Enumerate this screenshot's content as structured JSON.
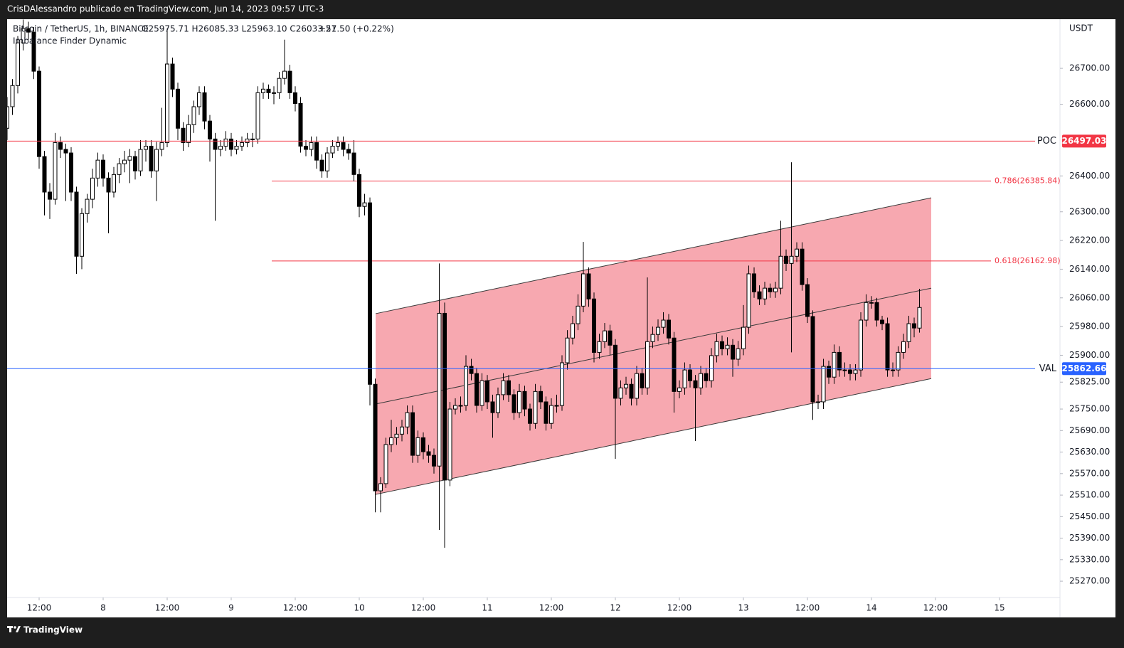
{
  "header": {
    "publisher": "CrisDAlessandro publicado en TradingView.com, Jun 14, 2023 09:57 UTC-3",
    "brand": "TradingView"
  },
  "chart_data": {
    "type": "candlestick",
    "title": "Bitcoin / TetherUS, 1h, BINANCE",
    "ohlc_text": "O25975.71 H26085.33 L25963.10 C26033.21",
    "change": "+57.50 (+0.22%)",
    "indicator": "Imbalance Finder Dynamic",
    "currency": "USDT",
    "up_color": "#ffffff",
    "down_color": "#000000",
    "wick_color": "#000000",
    "xlim": [
      -18,
      179.33
    ],
    "ylim": [
      25169,
      26837
    ],
    "xticks": [
      {
        "value": -12,
        "label": "12:00"
      },
      {
        "value": 0,
        "label": "8"
      },
      {
        "value": 12,
        "label": "12:00"
      },
      {
        "value": 24,
        "label": "9"
      },
      {
        "value": 36,
        "label": "12:00"
      },
      {
        "value": 48,
        "label": "10"
      },
      {
        "value": 60,
        "label": "12:00"
      },
      {
        "value": 72,
        "label": "11"
      },
      {
        "value": 84,
        "label": "12:00"
      },
      {
        "value": 96,
        "label": "12"
      },
      {
        "value": 108,
        "label": "12:00"
      },
      {
        "value": 120,
        "label": "13"
      },
      {
        "value": 132,
        "label": "12:00"
      },
      {
        "value": 144,
        "label": "14"
      },
      {
        "value": 156,
        "label": "12:00"
      },
      {
        "value": 168,
        "label": "15"
      }
    ],
    "yticks": [
      {
        "value": 26700,
        "label": "26700.00"
      },
      {
        "value": 26600,
        "label": "26600.00"
      },
      {
        "value": 26400,
        "label": "26400.00"
      },
      {
        "value": 26300,
        "label": "26300.00"
      },
      {
        "value": 26220,
        "label": "26220.00"
      },
      {
        "value": 26140,
        "label": "26140.00"
      },
      {
        "value": 26060,
        "label": "26060.00"
      },
      {
        "value": 25980,
        "label": "25980.00"
      },
      {
        "value": 25900,
        "label": "25900.00"
      },
      {
        "value": 25825,
        "label": "25825.00"
      },
      {
        "value": 25750,
        "label": "25750.00"
      },
      {
        "value": 25690,
        "label": "25690.00"
      },
      {
        "value": 25630,
        "label": "25630.00"
      },
      {
        "value": 25570,
        "label": "25570.00"
      },
      {
        "value": 25510,
        "label": "25510.00"
      },
      {
        "value": 25450,
        "label": "25450.00"
      },
      {
        "value": 25390,
        "label": "25390.00"
      },
      {
        "value": 25330,
        "label": "25330.00"
      },
      {
        "value": 25270,
        "label": "25270.00"
      }
    ],
    "levels": [
      {
        "name": "POC",
        "value": 26497.03,
        "color": "#f23645"
      },
      {
        "name": "VAL",
        "value": 25862.66,
        "color": "#2962ff"
      }
    ],
    "fib": [
      {
        "label": "0.786(26385.84)",
        "value": 26385.84,
        "start": 31.6,
        "color": "#f23645"
      },
      {
        "label": "0.618(26162.98)",
        "value": 26162.98,
        "start": 31.6,
        "color": "#f23645"
      }
    ],
    "channel": {
      "x": [
        51.07,
        155.2
      ],
      "upper": [
        26016,
        26339
      ],
      "middle": [
        25764,
        26087
      ],
      "lower": [
        25512,
        25835
      ],
      "color": "#f7a8b0"
    },
    "x": [
      -18,
      -17,
      -16,
      -15,
      -14,
      -13,
      -12,
      -11,
      -10,
      -9,
      -8,
      -7,
      -6,
      -5,
      -4,
      -3,
      -2,
      -1,
      0,
      1,
      2,
      3,
      4,
      5,
      6,
      7,
      8,
      9,
      10,
      11,
      12,
      13,
      14,
      15,
      16,
      17,
      18,
      19,
      20,
      21,
      22,
      23,
      24,
      25,
      26,
      27,
      28,
      29,
      30,
      31,
      32,
      33,
      34,
      35,
      36,
      37,
      38,
      39,
      40,
      41,
      42,
      43,
      44,
      45,
      46,
      47,
      48,
      49,
      50,
      51,
      52,
      53,
      54,
      55,
      56,
      57,
      58,
      59,
      60,
      61,
      62,
      63,
      64,
      65,
      66,
      67,
      68,
      69,
      70,
      71,
      72,
      73,
      74,
      75,
      76,
      77,
      78,
      79,
      80,
      81,
      82,
      83,
      84,
      85,
      86,
      87,
      88,
      89,
      90,
      91,
      92,
      93,
      94,
      95,
      96,
      97,
      98,
      99,
      100,
      101,
      102,
      103,
      104,
      105,
      106,
      107,
      108,
      109,
      110,
      111,
      112,
      113,
      114,
      115,
      116,
      117,
      118,
      119,
      120,
      121,
      122,
      123,
      124,
      125,
      126,
      127,
      128,
      129,
      130,
      131,
      132,
      133,
      134,
      135,
      136,
      137,
      138,
      139,
      140,
      141,
      142,
      143,
      144,
      145,
      146,
      147,
      148,
      149,
      150,
      151,
      152,
      153
    ],
    "candles": [
      [
        26533,
        26620,
        26500,
        26593
      ],
      [
        26593,
        26670,
        26570,
        26652
      ],
      [
        26652,
        26790,
        26630,
        26771
      ],
      [
        26771,
        26836,
        26750,
        26811
      ],
      [
        26811,
        26830,
        26780,
        26801
      ],
      [
        26801,
        26815,
        26670,
        26692
      ],
      [
        26692,
        26705,
        26420,
        26454
      ],
      [
        26454,
        26470,
        26290,
        26355
      ],
      [
        26355,
        26380,
        26280,
        26335
      ],
      [
        26335,
        26520,
        26320,
        26493
      ],
      [
        26493,
        26510,
        26450,
        26474
      ],
      [
        26474,
        26490,
        26330,
        26464
      ],
      [
        26464,
        26480,
        26330,
        26355
      ],
      [
        26355,
        26370,
        26127,
        26176
      ],
      [
        26176,
        26310,
        26140,
        26295
      ],
      [
        26295,
        26350,
        26270,
        26335
      ],
      [
        26335,
        26420,
        26310,
        26394
      ],
      [
        26394,
        26465,
        26370,
        26444
      ],
      [
        26444,
        26460,
        26370,
        26394
      ],
      [
        26394,
        26410,
        26240,
        26355
      ],
      [
        26355,
        26425,
        26340,
        26404
      ],
      [
        26404,
        26450,
        26380,
        26434
      ],
      [
        26434,
        26470,
        26410,
        26444
      ],
      [
        26444,
        26475,
        26380,
        26454
      ],
      [
        26454,
        26470,
        26390,
        26414
      ],
      [
        26414,
        26500,
        26400,
        26474
      ],
      [
        26474,
        26500,
        26440,
        26483
      ],
      [
        26483,
        26500,
        26395,
        26414
      ],
      [
        26414,
        26495,
        26330,
        26474
      ],
      [
        26474,
        26590,
        26455,
        26493
      ],
      [
        26493,
        26811,
        26480,
        26712
      ],
      [
        26712,
        26730,
        26620,
        26642
      ],
      [
        26642,
        26660,
        26500,
        26533
      ],
      [
        26533,
        26550,
        26470,
        26493
      ],
      [
        26493,
        26570,
        26480,
        26543
      ],
      [
        26543,
        26610,
        26520,
        26593
      ],
      [
        26593,
        26650,
        26570,
        26632
      ],
      [
        26632,
        26650,
        26530,
        26553
      ],
      [
        26553,
        26570,
        26440,
        26503
      ],
      [
        26503,
        26520,
        26275,
        26474
      ],
      [
        26474,
        26500,
        26455,
        26483
      ],
      [
        26483,
        26525,
        26470,
        26503
      ],
      [
        26503,
        26520,
        26455,
        26474
      ],
      [
        26474,
        26500,
        26460,
        26483
      ],
      [
        26483,
        26510,
        26470,
        26493
      ],
      [
        26493,
        26520,
        26480,
        26503
      ],
      [
        26503,
        26520,
        26480,
        26503
      ],
      [
        26503,
        26650,
        26490,
        26632
      ],
      [
        26632,
        26660,
        26615,
        26642
      ],
      [
        26642,
        26655,
        26615,
        26632
      ],
      [
        26632,
        26650,
        26600,
        26632
      ],
      [
        26632,
        26690,
        26615,
        26672
      ],
      [
        26672,
        26780,
        26655,
        26692
      ],
      [
        26692,
        26710,
        26615,
        26632
      ],
      [
        26632,
        26650,
        26580,
        26602
      ],
      [
        26602,
        26620,
        26465,
        26483
      ],
      [
        26483,
        26500,
        26455,
        26474
      ],
      [
        26474,
        26510,
        26455,
        26493
      ],
      [
        26493,
        26510,
        26420,
        26444
      ],
      [
        26444,
        26460,
        26395,
        26414
      ],
      [
        26414,
        26480,
        26395,
        26464
      ],
      [
        26464,
        26500,
        26450,
        26483
      ],
      [
        26483,
        26510,
        26470,
        26493
      ],
      [
        26493,
        26510,
        26455,
        26474
      ],
      [
        26474,
        26490,
        26445,
        26464
      ],
      [
        26464,
        26500,
        26385,
        26404
      ],
      [
        26404,
        26420,
        26285,
        26315
      ],
      [
        26315,
        26350,
        26290,
        26325
      ],
      [
        26325,
        26340,
        25760,
        25819
      ],
      [
        25819,
        25835,
        25462,
        25522
      ],
      [
        25522,
        25560,
        25462,
        25542
      ],
      [
        25542,
        25670,
        25530,
        25651
      ],
      [
        25651,
        25720,
        25630,
        25670
      ],
      [
        25670,
        25700,
        25650,
        25680
      ],
      [
        25680,
        25720,
        25660,
        25700
      ],
      [
        25700,
        25760,
        25680,
        25740
      ],
      [
        25740,
        25760,
        25600,
        25621
      ],
      [
        25621,
        25690,
        25600,
        25670
      ],
      [
        25670,
        25685,
        25610,
        25631
      ],
      [
        25631,
        25650,
        25600,
        25621
      ],
      [
        25621,
        25640,
        25570,
        25591
      ],
      [
        25591,
        26156,
        25413,
        26017
      ],
      [
        26017,
        26047,
        25363,
        25552
      ],
      [
        25552,
        25770,
        25535,
        25750
      ],
      [
        25750,
        25780,
        25735,
        25760
      ],
      [
        25760,
        25785,
        25740,
        25760
      ],
      [
        25760,
        25900,
        25745,
        25869
      ],
      [
        25869,
        25890,
        25830,
        25849
      ],
      [
        25849,
        25865,
        25740,
        25760
      ],
      [
        25760,
        25850,
        25745,
        25829
      ],
      [
        25829,
        25845,
        25750,
        25770
      ],
      [
        25770,
        25790,
        25670,
        25740
      ],
      [
        25740,
        25810,
        25725,
        25790
      ],
      [
        25790,
        25850,
        25775,
        25829
      ],
      [
        25829,
        25845,
        25770,
        25790
      ],
      [
        25790,
        25805,
        25720,
        25740
      ],
      [
        25740,
        25820,
        25725,
        25799
      ],
      [
        25799,
        25815,
        25730,
        25750
      ],
      [
        25750,
        25765,
        25690,
        25710
      ],
      [
        25710,
        25820,
        25695,
        25799
      ],
      [
        25799,
        25815,
        25750,
        25770
      ],
      [
        25770,
        25785,
        25690,
        25710
      ],
      [
        25710,
        25780,
        25695,
        25760
      ],
      [
        25760,
        25790,
        25740,
        25760
      ],
      [
        25760,
        25900,
        25745,
        25879
      ],
      [
        25879,
        25970,
        25860,
        25948
      ],
      [
        25948,
        26010,
        25930,
        25988
      ],
      [
        25988,
        26070,
        25970,
        26037
      ],
      [
        26037,
        26216,
        26020,
        26127
      ],
      [
        26127,
        26145,
        26035,
        26057
      ],
      [
        26057,
        26075,
        25880,
        25908
      ],
      [
        25908,
        25960,
        25890,
        25938
      ],
      [
        25938,
        25990,
        25920,
        25968
      ],
      [
        25968,
        25985,
        25900,
        25928
      ],
      [
        25928,
        25945,
        25611,
        25780
      ],
      [
        25780,
        25830,
        25760,
        25809
      ],
      [
        25809,
        25840,
        25790,
        25819
      ],
      [
        25819,
        25835,
        25760,
        25780
      ],
      [
        25780,
        25870,
        25760,
        25849
      ],
      [
        25849,
        25865,
        25790,
        25809
      ],
      [
        25809,
        26117,
        25790,
        25938
      ],
      [
        25938,
        25980,
        25920,
        25958
      ],
      [
        25958,
        26000,
        25940,
        25978
      ],
      [
        25978,
        26020,
        25960,
        25998
      ],
      [
        25998,
        26015,
        25930,
        25948
      ],
      [
        25948,
        25965,
        25740,
        25799
      ],
      [
        25799,
        25830,
        25780,
        25809
      ],
      [
        25809,
        25880,
        25790,
        25859
      ],
      [
        25859,
        25875,
        25810,
        25829
      ],
      [
        25829,
        25845,
        25661,
        25809
      ],
      [
        25809,
        25870,
        25790,
        25849
      ],
      [
        25849,
        25865,
        25810,
        25829
      ],
      [
        25829,
        25920,
        25810,
        25899
      ],
      [
        25899,
        25960,
        25880,
        25938
      ],
      [
        25938,
        25955,
        25900,
        25918
      ],
      [
        25918,
        25950,
        25900,
        25928
      ],
      [
        25928,
        25945,
        25840,
        25889
      ],
      [
        25889,
        25940,
        25870,
        25918
      ],
      [
        25918,
        26040,
        25900,
        25978
      ],
      [
        25978,
        26150,
        25960,
        26127
      ],
      [
        26127,
        26145,
        26060,
        26077
      ],
      [
        26077,
        26095,
        26040,
        26057
      ],
      [
        26057,
        26105,
        26040,
        26087
      ],
      [
        26087,
        26100,
        26060,
        26077
      ],
      [
        26077,
        26105,
        26060,
        26087
      ],
      [
        26087,
        26275,
        26070,
        26176
      ],
      [
        26176,
        26195,
        26135,
        26156
      ],
      [
        26156,
        26438,
        25908,
        26176
      ],
      [
        26176,
        26215,
        26160,
        26196
      ],
      [
        26196,
        26215,
        26080,
        26097
      ],
      [
        26097,
        26115,
        25990,
        26008
      ],
      [
        26008,
        26025,
        25720,
        25770
      ],
      [
        25770,
        25790,
        25750,
        25770
      ],
      [
        25770,
        25890,
        25750,
        25869
      ],
      [
        25869,
        25885,
        25820,
        25839
      ],
      [
        25839,
        25930,
        25820,
        25908
      ],
      [
        25908,
        25925,
        25840,
        25859
      ],
      [
        25859,
        25880,
        25840,
        25859
      ],
      [
        25859,
        25875,
        25830,
        25849
      ],
      [
        25849,
        25875,
        25830,
        25859
      ],
      [
        25859,
        26020,
        25840,
        25998
      ],
      [
        25998,
        26070,
        25980,
        26047
      ],
      [
        26047,
        26065,
        26030,
        26047
      ],
      [
        26047,
        26060,
        25980,
        25998
      ],
      [
        25998,
        26010,
        25970,
        25988
      ],
      [
        25988,
        26005,
        25840,
        25859
      ],
      [
        25859,
        25880,
        25840,
        25859
      ],
      [
        25859,
        25925,
        25840,
        25908
      ],
      [
        25908,
        25960,
        25890,
        25938
      ],
      [
        25938,
        26010,
        25920,
        25988
      ],
      [
        25988,
        26005,
        25950,
        25976
      ],
      [
        25975.71,
        26085.33,
        25963.1,
        26033.21
      ]
    ]
  }
}
